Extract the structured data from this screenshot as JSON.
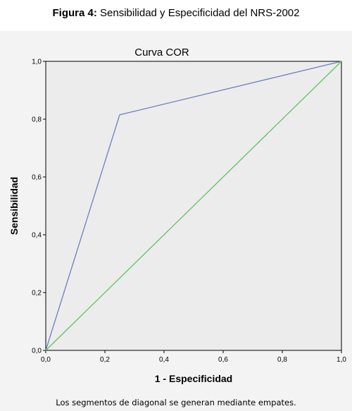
{
  "figure_caption": {
    "prefix": "Figura 4:",
    "text": "Sensibilidad y  Especificidad del NRS-2002"
  },
  "chart_data": {
    "type": "line",
    "title": "Curva COR",
    "xlabel": "1 - Especificidad",
    "ylabel": "Sensibilidad",
    "xlim": [
      0,
      1
    ],
    "ylim": [
      0,
      1
    ],
    "x_ticks": [
      "0,0",
      "0,2",
      "0,4",
      "0,6",
      "0,8",
      "1,0"
    ],
    "y_ticks": [
      "0,0",
      "0,2",
      "0,4",
      "0,6",
      "0,8",
      "1,0"
    ],
    "grid": false,
    "series": [
      {
        "x": [
          0.0,
          0.25,
          1.0
        ],
        "y": [
          0.0,
          0.815,
          1.0
        ],
        "color": "#6b7fbf"
      },
      {
        "x": [
          0.0,
          1.0
        ],
        "y": [
          0.0,
          1.0
        ],
        "color": "#5cc45c"
      }
    ],
    "footnote": "Los segmentos de diagonal se generan mediante empates."
  }
}
